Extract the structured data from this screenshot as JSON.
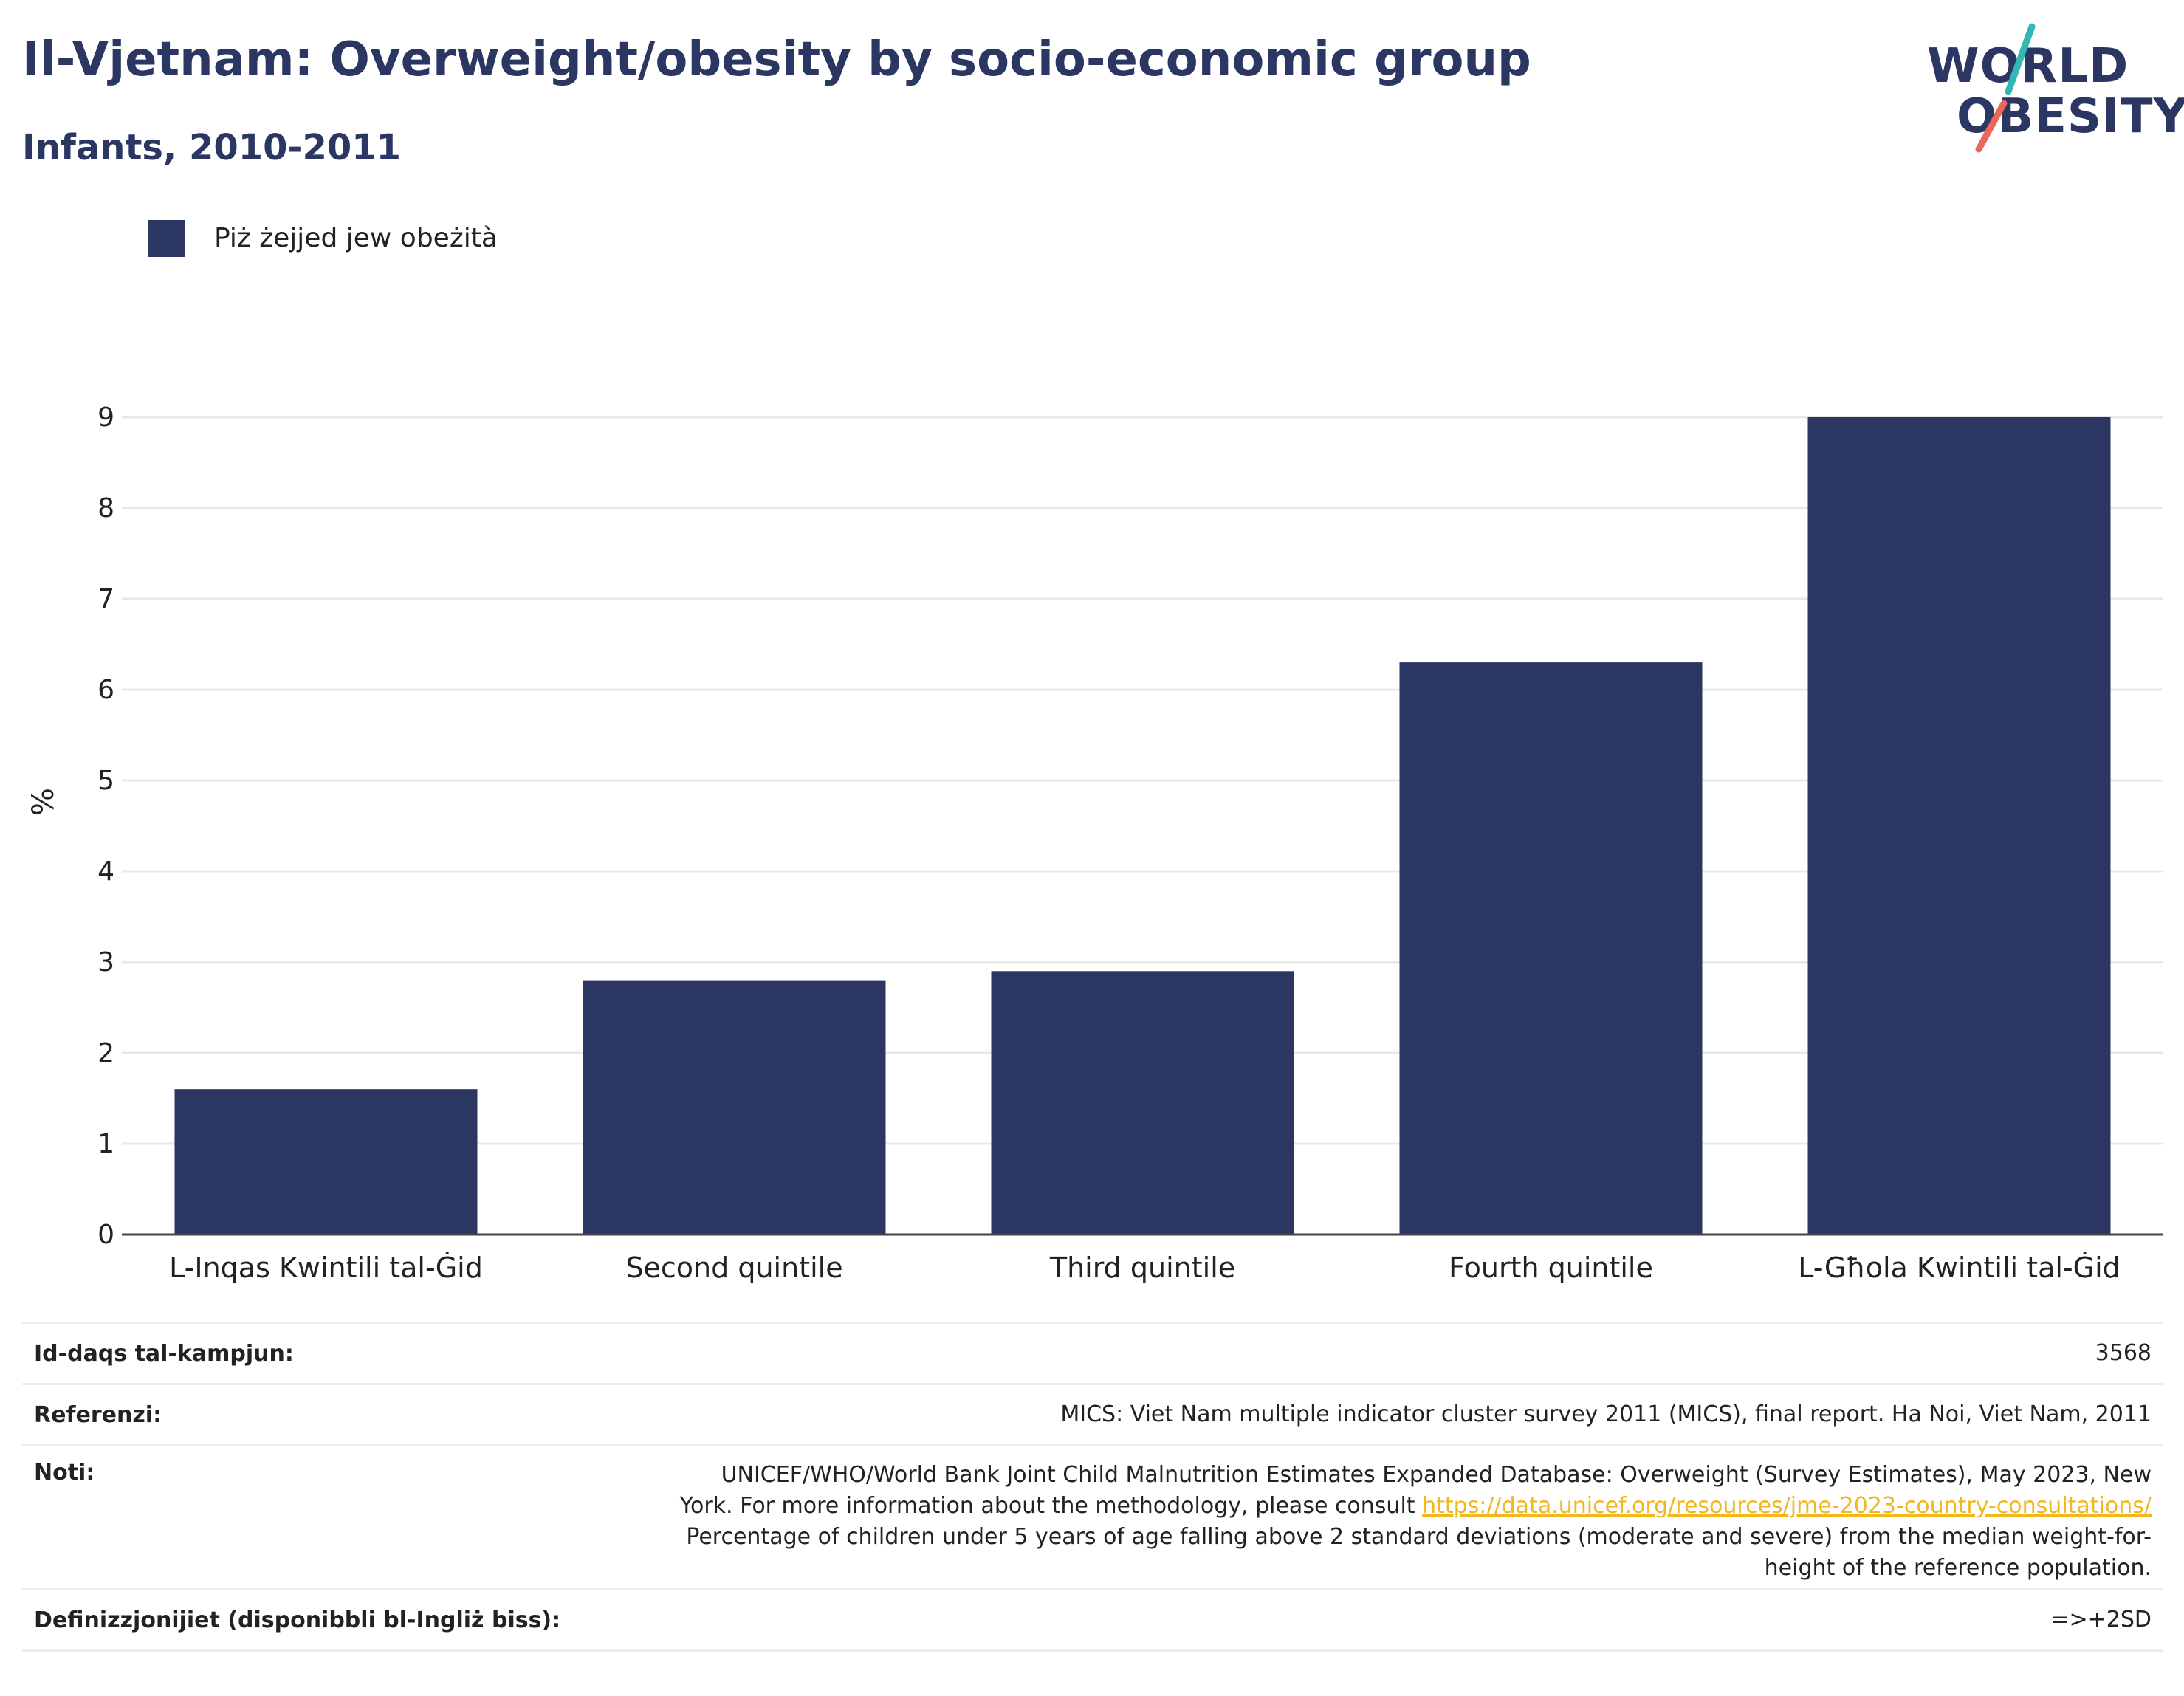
{
  "header": {
    "title": "Il-Vjetnam: Overweight/obesity by socio-economic group",
    "subtitle": "Infants, 2010-2011"
  },
  "logo": {
    "line1": "WORLD",
    "line2": "OBESITY",
    "slash_colors": [
      "#33b6b4",
      "#e8685a"
    ]
  },
  "legend": {
    "label": "Piż żejjed jew obeżità",
    "color": "#2b3663"
  },
  "chart_data": {
    "type": "bar",
    "categories": [
      "L-Inqas Kwintili tal-Ġid",
      "Second quintile",
      "Third quintile",
      "Fourth quintile",
      "L-Għola Kwintili tal-Ġid"
    ],
    "series": [
      {
        "name": "Piż żejjed jew obeżità",
        "values": [
          1.6,
          2.8,
          2.9,
          6.3,
          9.0
        ]
      }
    ],
    "ylabel": "%",
    "ylim": [
      0,
      9
    ],
    "yticks": [
      0,
      1,
      2,
      3,
      4,
      5,
      6,
      7,
      8,
      9
    ],
    "grid": true,
    "legend_position": "top-left",
    "bar_color": "#2b3663"
  },
  "details": {
    "sample_label": "Id-daqs tal-kampjun:",
    "sample_value": "3568",
    "references_label": "Referenzi:",
    "references_value": "MICS: Viet Nam multiple indicator cluster survey 2011 (MICS), final report. Ha Noi, Viet Nam, 2011",
    "notes_label": "Noti:",
    "notes_line1": "UNICEF/WHO/World Bank Joint Child Malnutrition Estimates Expanded Database: Overweight (Survey Estimates), May 2023, New",
    "notes_line2_prefix": "York. For more information about the methodology, please consult",
    "notes_link": "https://data.unicef.org/resources/jme-2023-country-consultations/",
    "notes_line3": "Percentage of children under 5 years of age falling above 2 standard deviations (moderate and severe) from the median weight-for-",
    "notes_line4": "height of the reference population.",
    "definitions_label": "Definizzjonijiet (disponibbli bl-Ingliż biss):",
    "definitions_value": "=>+2SD"
  }
}
